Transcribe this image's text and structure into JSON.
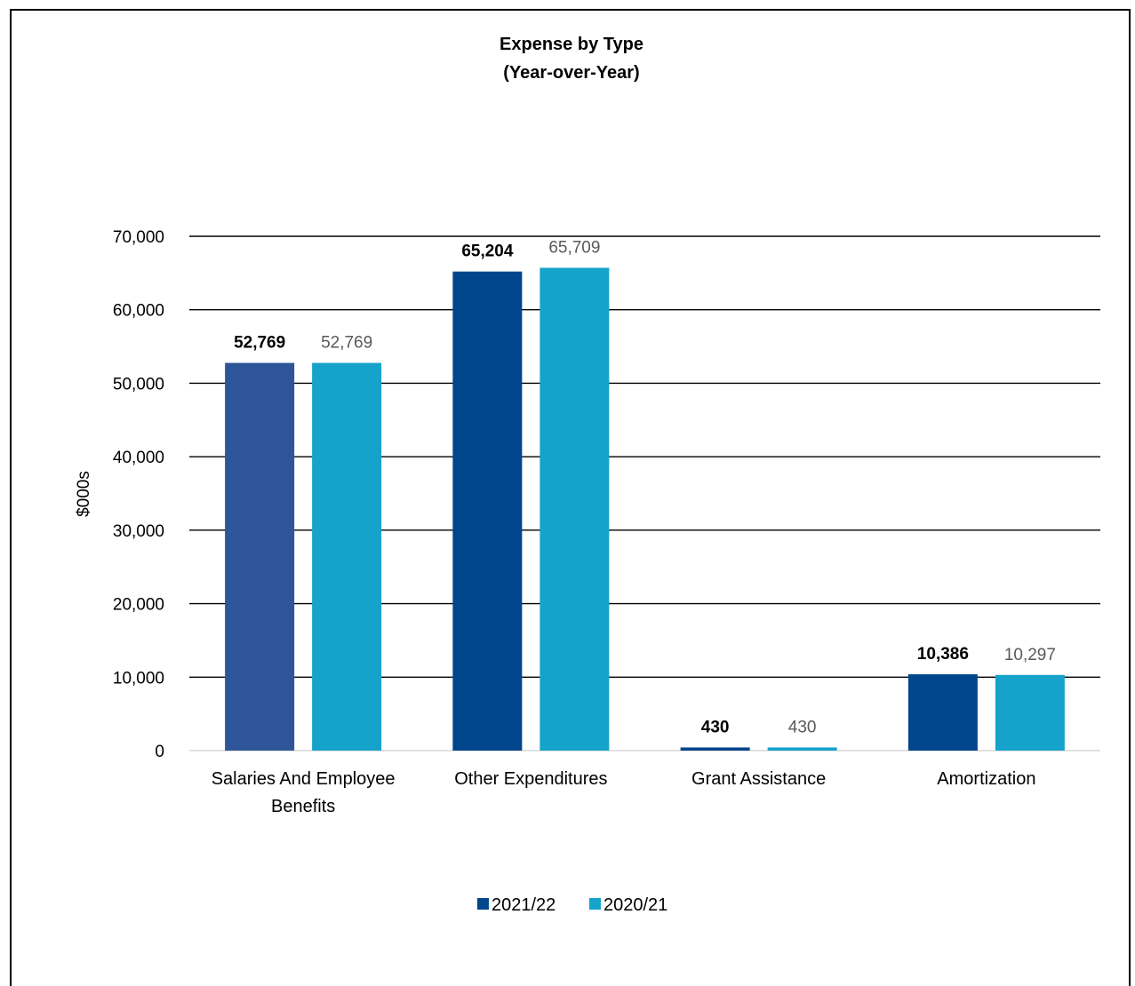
{
  "chart_data": {
    "type": "bar",
    "title": "Expense by Type",
    "subtitle": "(Year-over-Year)",
    "ylabel": "$000s",
    "xlabel": "",
    "ylim": [
      0,
      70000
    ],
    "yticks": [
      0,
      10000,
      20000,
      30000,
      40000,
      50000,
      60000,
      70000
    ],
    "ytick_labels": [
      "0",
      "10,000",
      "20,000",
      "30,000",
      "40,000",
      "50,000",
      "60,000",
      "70,000"
    ],
    "grid": true,
    "legend_position": "bottom",
    "categories": [
      [
        "Salaries And Employee",
        "Benefits"
      ],
      [
        "Other Expenditures"
      ],
      [
        "Grant Assistance"
      ],
      [
        "Amortization"
      ]
    ],
    "series": [
      {
        "name": "2021/22",
        "color": "#01468c",
        "values": [
          52769,
          65204,
          430,
          10386
        ],
        "labels": [
          "52,769",
          "65,204",
          "430",
          "10,386"
        ],
        "point_colors": [
          "#2e5597",
          null,
          null,
          null
        ]
      },
      {
        "name": "2020/21",
        "color": "#15a3cb",
        "values": [
          52769,
          65709,
          430,
          10297
        ],
        "labels": [
          "52,769",
          "65,709",
          "430",
          "10,297"
        ]
      }
    ]
  }
}
